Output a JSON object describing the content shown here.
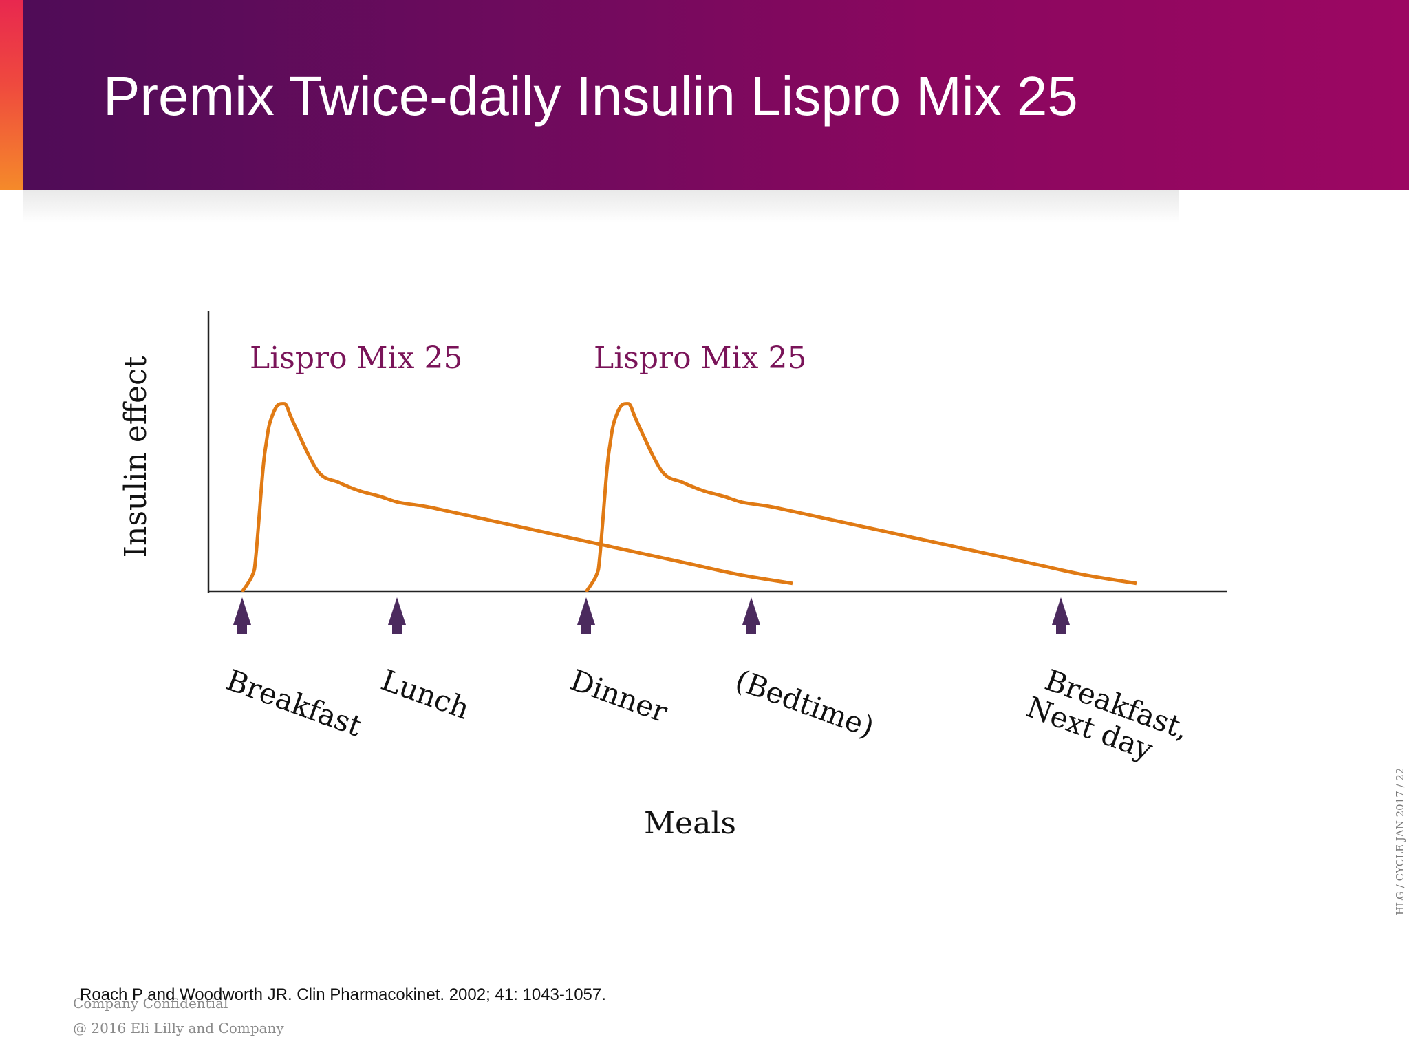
{
  "header": {
    "title": "Premix Twice-daily Insulin Lispro Mix 25"
  },
  "colors": {
    "curve": "#e07a14",
    "arrow": "#4b2a5e",
    "series_label": "#7a1459",
    "axis": "#222222"
  },
  "chart_data": {
    "type": "line",
    "title": "Premix Twice-daily Insulin Lispro Mix 25",
    "xlabel": "Meals",
    "ylabel": "Insulin effect",
    "xlim": [
      0,
      28
    ],
    "ylim": [
      0,
      100
    ],
    "grid": false,
    "series": [
      {
        "name": "Lispro Mix 25",
        "x": [
          0,
          0.3,
          0.4,
          0.6,
          0.7,
          0.8,
          1.0,
          1.2,
          1.3,
          1.5,
          2.2,
          2.8,
          3.4,
          4.0,
          4.5,
          5.0,
          5.5,
          7.0,
          8.5,
          10.0,
          11.5,
          13.0,
          14.5,
          16.0
        ],
        "values": [
          0,
          6,
          13,
          43,
          53,
          60,
          66,
          67,
          66,
          60,
          43,
          39,
          36,
          34,
          32,
          31,
          30,
          26,
          22,
          18,
          14,
          10,
          6,
          3
        ]
      },
      {
        "name": "Lispro Mix 25",
        "x": [
          10,
          10.3,
          10.4,
          10.6,
          10.7,
          10.8,
          11.0,
          11.2,
          11.3,
          11.5,
          12.2,
          12.8,
          13.4,
          14.0,
          14.5,
          15.0,
          15.5,
          17.0,
          18.5,
          20.0,
          21.5,
          23.0,
          24.5,
          26.0
        ],
        "values": [
          0,
          6,
          13,
          43,
          53,
          60,
          66,
          67,
          66,
          60,
          43,
          39,
          36,
          34,
          32,
          31,
          30,
          26,
          22,
          18,
          14,
          10,
          6,
          3
        ]
      }
    ],
    "series_labels": [
      {
        "text": "Lispro Mix 25",
        "x": 0.5
      },
      {
        "text": "Lispro Mix 25",
        "x": 10.5
      }
    ],
    "meals": [
      {
        "label": "Breakfast",
        "x": 0
      },
      {
        "label": "Lunch",
        "x": 4.5
      },
      {
        "label": "Dinner",
        "x": 10
      },
      {
        "label": "(Bedtime)",
        "x": 14.8
      },
      {
        "label": "Breakfast,",
        "label2": "Next day",
        "x": 23.8
      }
    ]
  },
  "footer": {
    "citation": "Roach P and Woodworth JR. Clin Pharmacokinet. 2002; 41: 1043-1057.",
    "confidential": "Company Confidential",
    "copyright": "@ 2016  Eli Lilly and Company",
    "slide_code": "HLG / CYCLE JAN 2017 / 22"
  }
}
